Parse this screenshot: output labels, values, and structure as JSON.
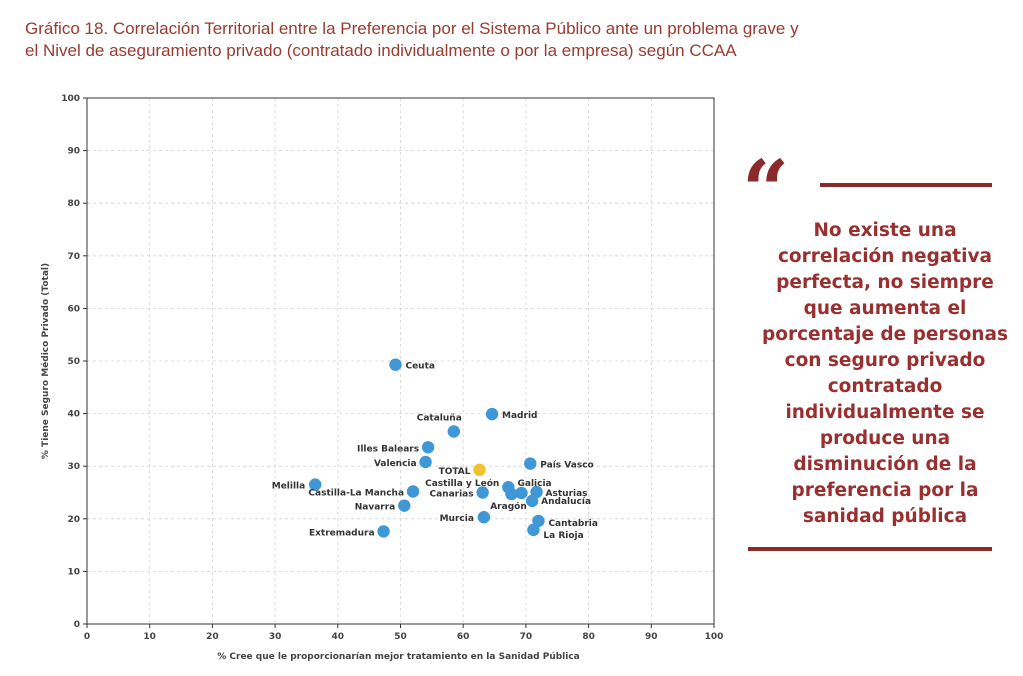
{
  "title_lines": [
    "Gráfico 18. Correlación Territorial entre la Preferencia por el Sistema Público ante un problema grave y",
    "el Nivel de aseguramiento privado (contratado individualmente o por la empresa) según CCAA"
  ],
  "quote": "No existe una correlación negativa perfecta, no siempre que aumenta el porcentaje de personas con seguro privado contratado individualmente se produce una disminución de la preferencia por la sanidad pública",
  "colors": {
    "point": "#3f97d6",
    "total": "#f2c12e",
    "accent": "#8b2a2a",
    "title": "#9a3b2f"
  },
  "chart_data": {
    "type": "scatter",
    "xlabel": "% Cree que le proporcionarían mejor tratamiento en la Sanidad Pública",
    "ylabel": "% Tiene Seguro Médico Privado (Total)",
    "xlim": [
      0,
      100
    ],
    "ylim": [
      0,
      100
    ],
    "xticks": [
      0,
      10,
      20,
      30,
      40,
      50,
      60,
      70,
      80,
      90,
      100
    ],
    "yticks": [
      0,
      10,
      20,
      30,
      40,
      50,
      60,
      70,
      80,
      90,
      100
    ],
    "grid": true,
    "points": [
      {
        "label": "Ceuta",
        "x": 49.2,
        "y": 49.3
      },
      {
        "label": "Madrid",
        "x": 64.6,
        "y": 39.9
      },
      {
        "label": "Cataluña",
        "x": 58.5,
        "y": 36.6
      },
      {
        "label": "Illes Balears",
        "x": 54.4,
        "y": 33.6
      },
      {
        "label": "Valencia",
        "x": 54.0,
        "y": 30.8
      },
      {
        "label": "País Vasco",
        "x": 70.7,
        "y": 30.5
      },
      {
        "label": "TOTAL",
        "x": 62.6,
        "y": 29.3,
        "total": true
      },
      {
        "label": "Melilla",
        "x": 36.4,
        "y": 26.5
      },
      {
        "label": "Castilla y León",
        "x": 67.2,
        "y": 26.0
      },
      {
        "label": "Galicia",
        "x": 69.3,
        "y": 24.9
      },
      {
        "label": "Asturias",
        "x": 71.7,
        "y": 25.1
      },
      {
        "label": "Castilla-La Mancha",
        "x": 52.0,
        "y": 25.2
      },
      {
        "label": "Canarias",
        "x": 63.1,
        "y": 25.0
      },
      {
        "label": "Aragón",
        "x": 67.7,
        "y": 24.7
      },
      {
        "label": "Andalucía",
        "x": 71.0,
        "y": 23.4
      },
      {
        "label": "Navarra",
        "x": 50.6,
        "y": 22.5
      },
      {
        "label": "Murcia",
        "x": 63.3,
        "y": 20.3
      },
      {
        "label": "Cantabria",
        "x": 72.0,
        "y": 19.6
      },
      {
        "label": "La Rioja",
        "x": 71.2,
        "y": 17.9
      },
      {
        "label": "Extremadura",
        "x": 47.3,
        "y": 17.6
      }
    ]
  }
}
